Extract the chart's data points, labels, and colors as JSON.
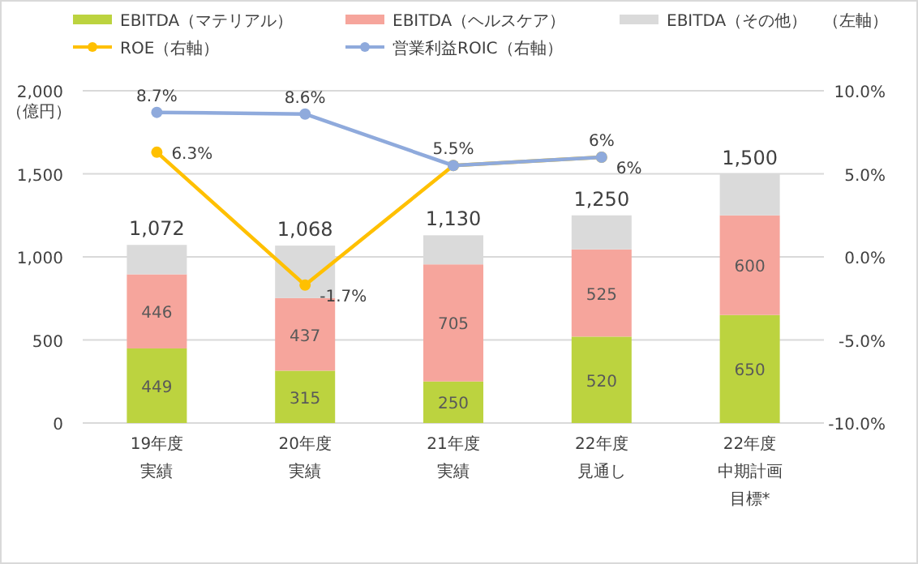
{
  "chart_data": {
    "type": "bar",
    "stacked": true,
    "categories": [
      "19年度実績",
      "20年度実績",
      "21年度実績",
      "22年度見通し",
      "22年度中期計画目標*"
    ],
    "ylabel": "（億円）",
    "ylim": [
      0,
      2000
    ],
    "yticks": [
      {
        "value": 0,
        "label": "0"
      },
      {
        "value": 500,
        "label": "500"
      },
      {
        "value": 1000,
        "label": "1,000"
      },
      {
        "value": 1500,
        "label": "1,500"
      },
      {
        "value": 2000,
        "label": "2,000"
      }
    ],
    "y2lim": [
      -10,
      10
    ],
    "y2ticks": [
      {
        "value": -10,
        "label": "-10.0%"
      },
      {
        "value": -5,
        "label": "-5.0%"
      },
      {
        "value": 0,
        "label": "0.0%"
      },
      {
        "value": 5,
        "label": "5.0%"
      },
      {
        "value": 10,
        "label": "10.0%"
      }
    ],
    "grid": "y",
    "legend": "top",
    "marker": "circle",
    "totals": [
      "1,072",
      "1,068",
      "1,130",
      "1,250",
      "1,500"
    ],
    "series": [
      {
        "name": "EBITDA（マテリアル）",
        "color": "#bcd33f",
        "values": [
          449,
          315,
          250,
          520,
          650
        ],
        "value_labels": [
          "449",
          "315",
          "250",
          "520",
          "650"
        ]
      },
      {
        "name": "EBITDA（ヘルスケア）",
        "color": "#f6a59c",
        "values": [
          446,
          437,
          705,
          525,
          600
        ],
        "value_labels": [
          "446",
          "437",
          "705",
          "525",
          "600"
        ]
      },
      {
        "name": "EBITDA（その他）　（左軸）",
        "color": "#dadada",
        "values": [
          177,
          316,
          175,
          205,
          250
        ]
      },
      {
        "name": "ROE（右軸）",
        "type": "line",
        "axis": "y2",
        "color": "#ffc000",
        "values": [
          6.3,
          -1.7,
          5.5,
          6,
          null
        ],
        "value_labels": [
          "6.3%",
          "-1.7%",
          null,
          "6%",
          null
        ]
      },
      {
        "name": "営業利益ROIC（右軸）",
        "type": "line",
        "axis": "y2",
        "color": "#8faadc",
        "values": [
          8.7,
          8.6,
          5.5,
          6,
          null
        ],
        "value_labels": [
          "8.7%",
          "8.6%",
          "5.5%",
          "6%",
          null
        ]
      }
    ]
  }
}
